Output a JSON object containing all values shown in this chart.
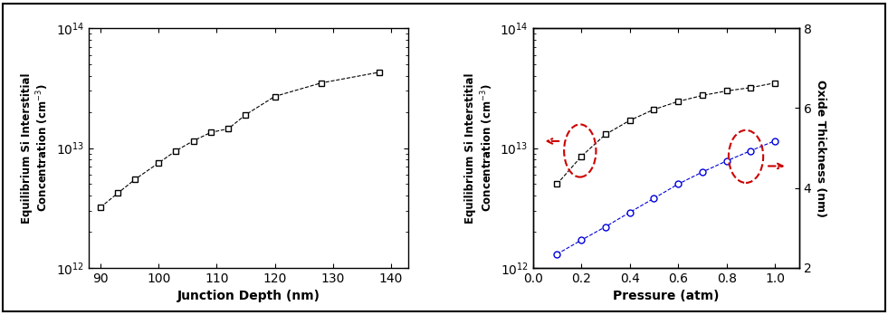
{
  "panel1": {
    "x": [
      90,
      93,
      96,
      100,
      103,
      106,
      109,
      112,
      115,
      120,
      128,
      138
    ],
    "y": [
      3200000000000.0,
      4200000000000.0,
      5500000000000.0,
      7500000000000.0,
      9500000000000.0,
      11500000000000.0,
      13500000000000.0,
      14500000000000.0,
      19000000000000.0,
      27000000000000.0,
      35000000000000.0,
      43000000000000.0
    ],
    "xlabel": "Junction Depth (nm)",
    "ylabel_line1": "Equilibrium Si Interstitial",
    "ylabel_line2": "Concentration (cm",
    "ylabel_sup": "-3",
    "xlim": [
      88,
      143
    ],
    "ylim_log": [
      12,
      14
    ],
    "xticks": [
      90,
      100,
      110,
      120,
      130,
      140
    ],
    "yticks": [
      1000000000000.0,
      10000000000000.0,
      100000000000000.0
    ],
    "color": "#000000",
    "marker": "s",
    "markersize": 5,
    "linestyle": "--"
  },
  "panel2": {
    "black_x": [
      0.1,
      0.2,
      0.3,
      0.4,
      0.5,
      0.6,
      0.7,
      0.8,
      0.9,
      1.0
    ],
    "black_y": [
      5000000000000.0,
      8500000000000.0,
      13000000000000.0,
      17000000000000.0,
      21000000000000.0,
      24500000000000.0,
      27500000000000.0,
      30000000000000.0,
      32000000000000.0,
      35000000000000.0
    ],
    "blue_x": [
      0.1,
      0.2,
      0.3,
      0.4,
      0.5,
      0.6,
      0.7,
      0.8,
      0.9,
      1.0
    ],
    "blue_y": [
      1300000000000.0,
      1700000000000.0,
      2200000000000.0,
      2900000000000.0,
      3800000000000.0,
      5000000000000.0,
      6300000000000.0,
      7800000000000.0,
      9500000000000.0,
      11500000000000.0
    ],
    "xlabel": "Pressure (atm)",
    "ylabel_right": "Oxide Thickness (nm)",
    "xlim": [
      0.0,
      1.1
    ],
    "ylim_log": [
      12,
      14
    ],
    "ylim_right": [
      2,
      8
    ],
    "xticks": [
      0.0,
      0.2,
      0.4,
      0.6,
      0.8,
      1.0
    ],
    "yticks_right": [
      2,
      4,
      6,
      8
    ],
    "black_color": "#000000",
    "blue_color": "#0000dd",
    "red_color": "#cc0000",
    "black_marker": "s",
    "blue_marker": "o",
    "markersize": 5,
    "linestyle": "--"
  },
  "fig_background": "#ffffff"
}
